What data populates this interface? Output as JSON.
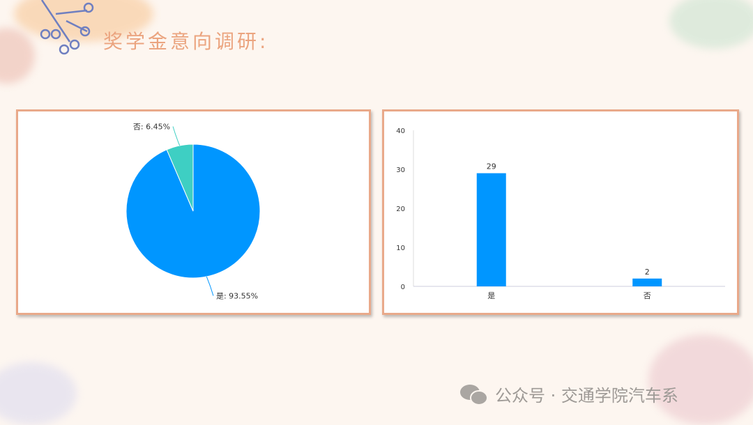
{
  "title": "奖学金意向调研:",
  "chart_data": [
    {
      "type": "pie",
      "slices": [
        {
          "label": "是",
          "value": 93.55,
          "display": "是: 93.55%",
          "color": "#0096ff"
        },
        {
          "label": "否",
          "value": 6.45,
          "display": "否: 6.45%",
          "color": "#3ecfc3"
        }
      ]
    },
    {
      "type": "bar",
      "categories": [
        "是",
        "否"
      ],
      "values": [
        29,
        2
      ],
      "ylim": [
        0,
        40
      ],
      "yticks": [
        "0",
        "10",
        "20",
        "30",
        "40"
      ],
      "color": "#0096ff",
      "grid": false
    }
  ],
  "footer": {
    "icon": "wechat-icon",
    "text": "公众号 · 交通学院汽车系"
  }
}
